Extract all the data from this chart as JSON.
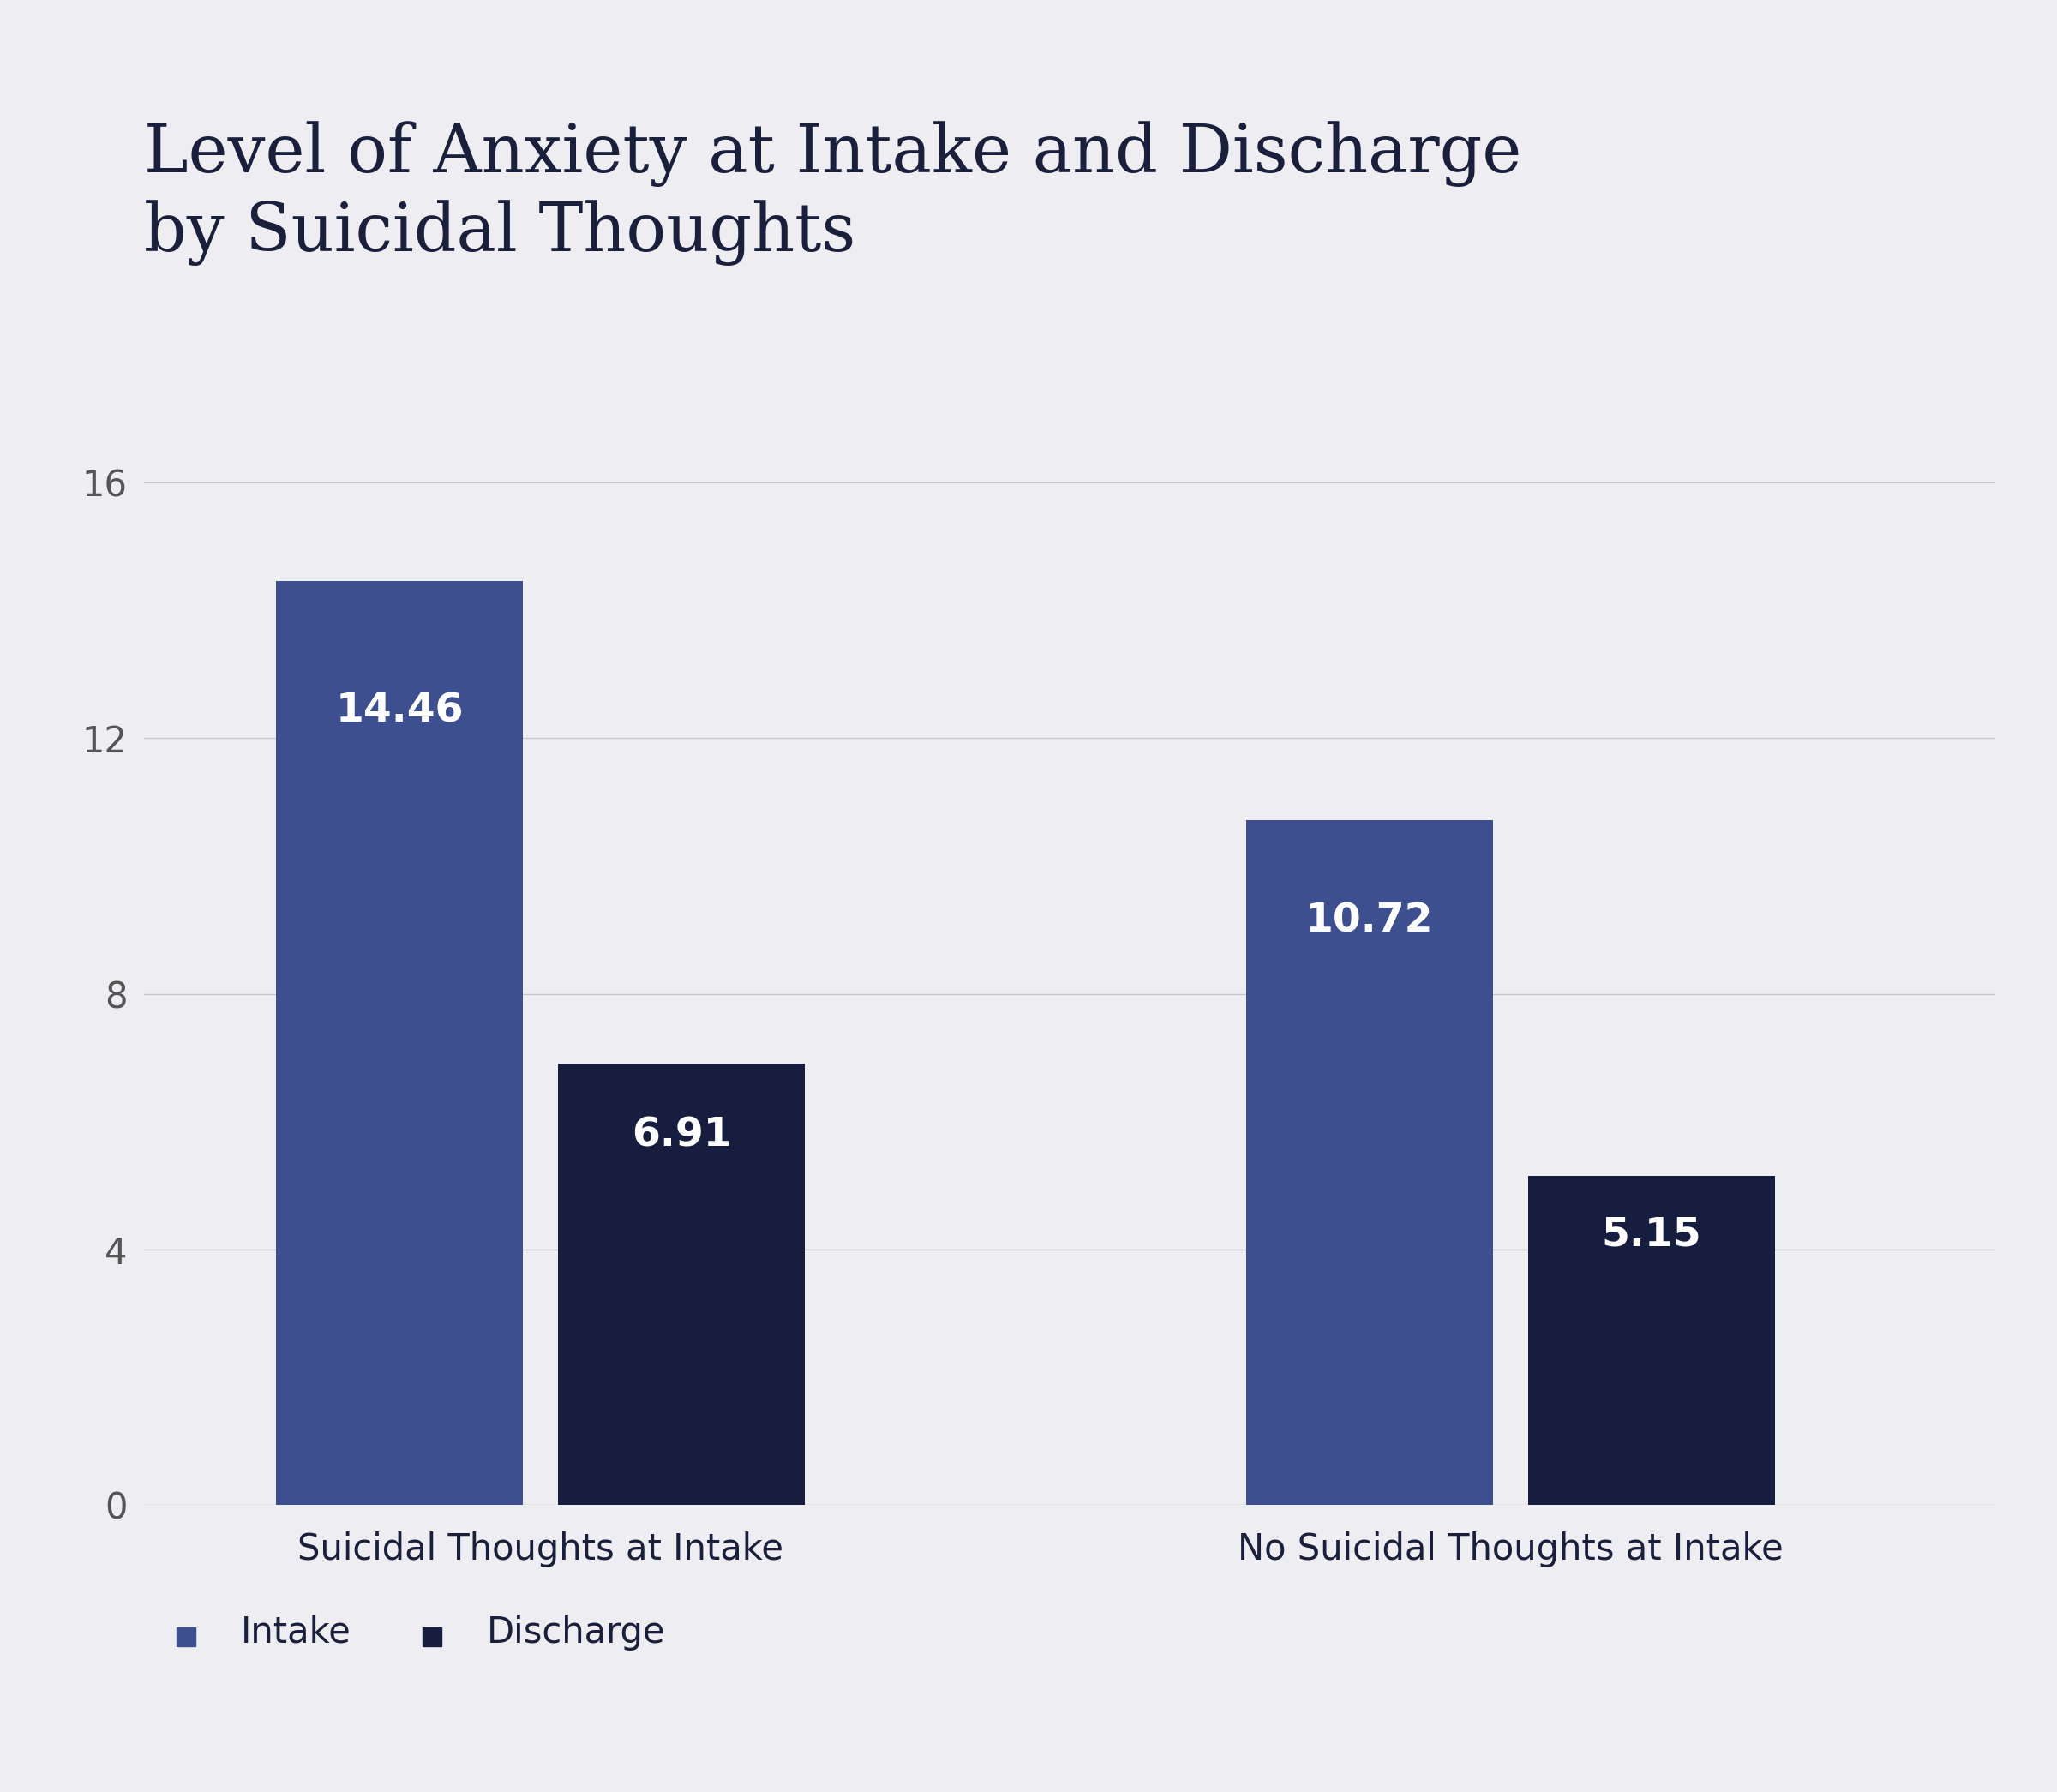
{
  "title": "Level of Anxiety at Intake and Discharge\nby Suicidal Thoughts",
  "groups": [
    "Suicidal Thoughts at Intake",
    "No Suicidal Thoughts at Intake"
  ],
  "intake_values": [
    14.46,
    10.72
  ],
  "discharge_values": [
    6.91,
    5.15
  ],
  "intake_color": "#3D4F8F",
  "discharge_color": "#161D3F",
  "background_color": "#EEEEF2",
  "title_color": "#1A1F3C",
  "label_color": "#1A1F3C",
  "tick_color": "#555555",
  "bar_label_color": "#FFFFFF",
  "yticks": [
    0,
    4,
    8,
    12,
    16
  ],
  "ylim": [
    0,
    18.5
  ],
  "bar_width": 0.28,
  "title_fontsize": 56,
  "tick_fontsize": 30,
  "xlabel_fontsize": 30,
  "bar_label_fontsize": 34,
  "legend_fontsize": 30,
  "legend_intake_label": "Intake",
  "legend_discharge_label": "Discharge",
  "group_centers": [
    0.45,
    1.55
  ],
  "xlim": [
    0.0,
    2.1
  ]
}
